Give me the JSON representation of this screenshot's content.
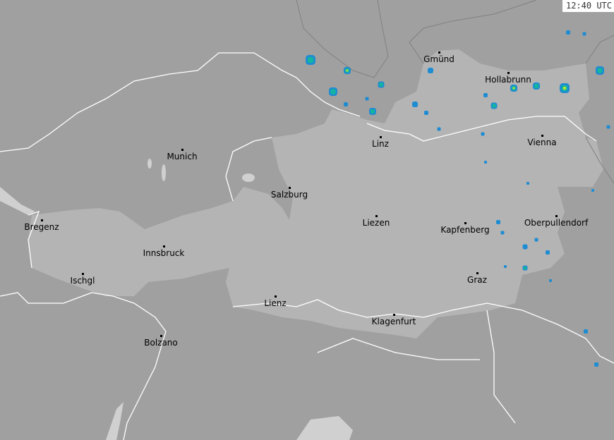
{
  "timestamp": "12:40 UTC",
  "colors": {
    "background": "#a0a0a0",
    "country_fill": "#b4b4b4",
    "border": "#ffffff",
    "outer_border": "#808080",
    "radar_weak": "#1e8cd2",
    "radar_moderate": "#14b4a0",
    "radar_strong": "#b4e632"
  },
  "cities": [
    {
      "name": "Gmünd"
    },
    {
      "name": "Hollabrunn"
    },
    {
      "name": "Linz"
    },
    {
      "name": "Vienna"
    },
    {
      "name": "Munich"
    },
    {
      "name": "Salzburg"
    },
    {
      "name": "Liezen"
    },
    {
      "name": "Kapfenberg"
    },
    {
      "name": "Oberpullendorf"
    },
    {
      "name": "Bregenz"
    },
    {
      "name": "Innsbruck"
    },
    {
      "name": "Ischgl"
    },
    {
      "name": "Graz"
    },
    {
      "name": "Lienz"
    },
    {
      "name": "Klagenfurt"
    },
    {
      "name": "Bolzano"
    }
  ]
}
